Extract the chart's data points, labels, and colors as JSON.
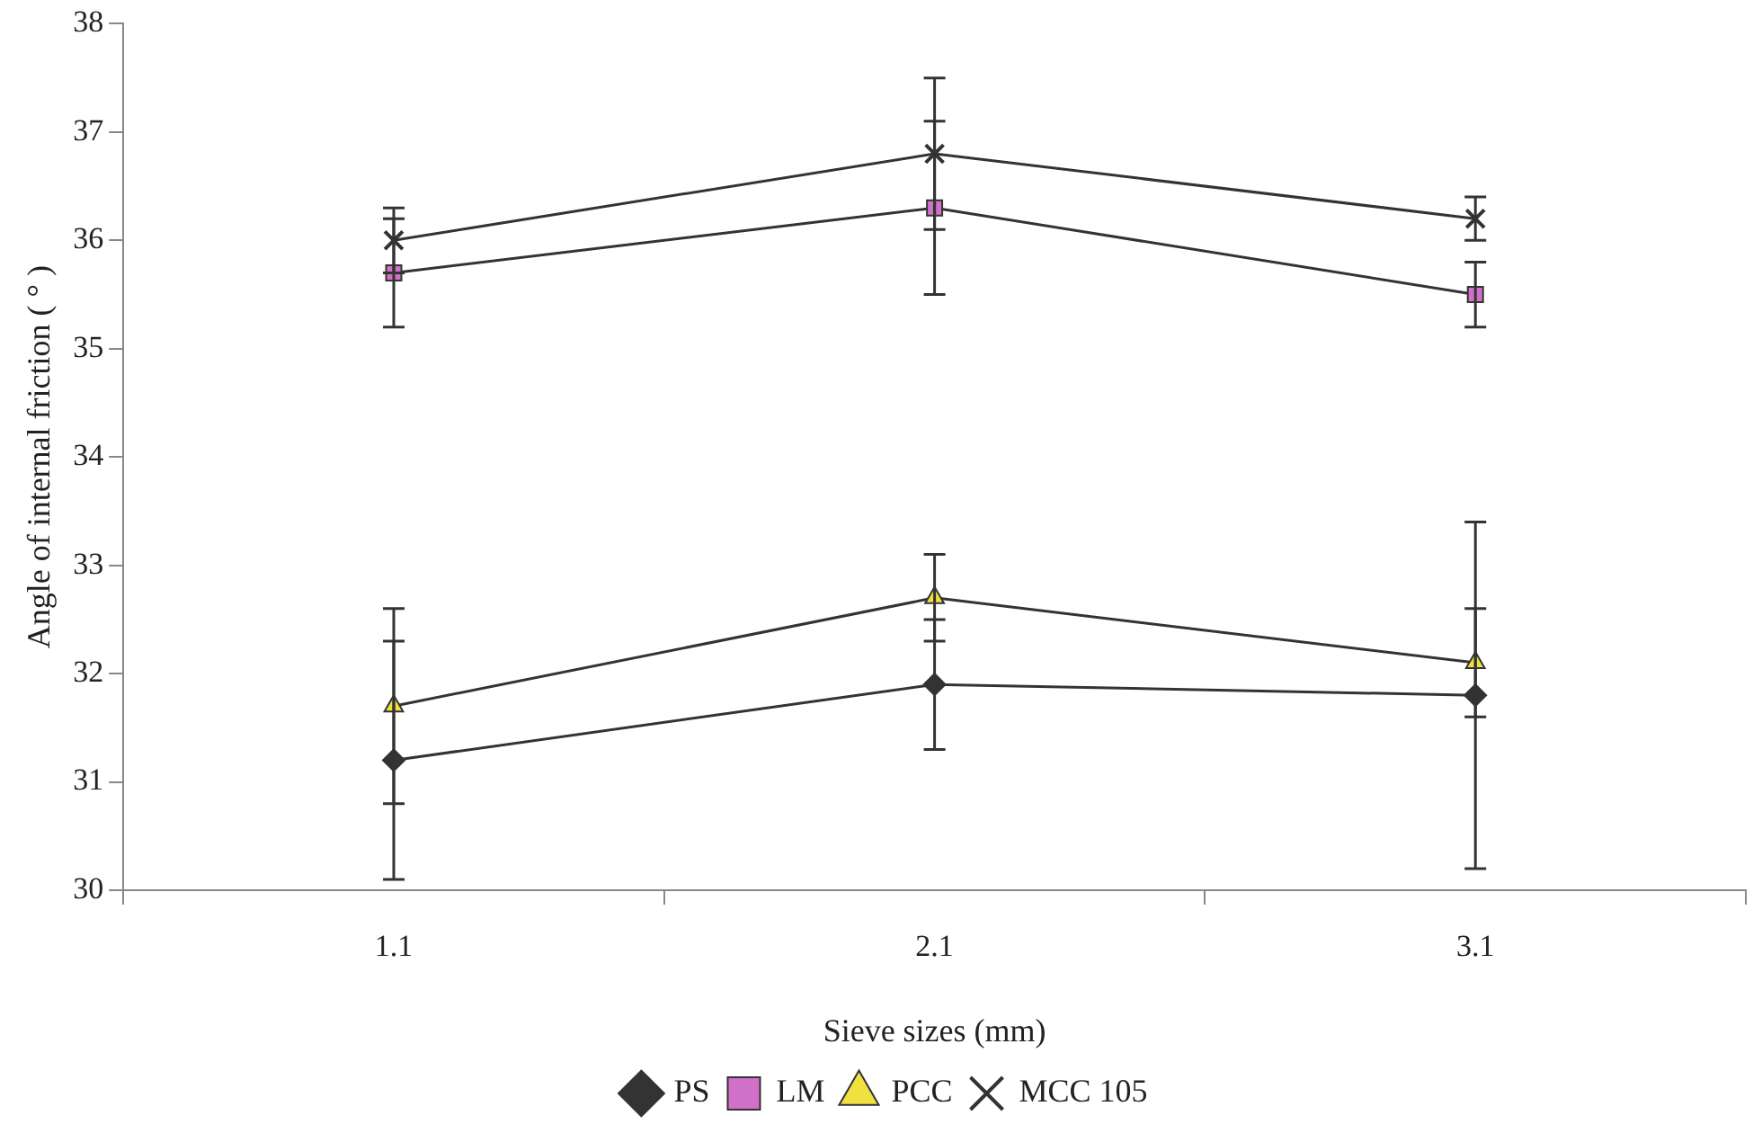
{
  "chart_data": {
    "type": "line",
    "xlabel": "Sieve sizes (mm)",
    "ylabel": "Angle of internal friction ( ° )",
    "categories": [
      "1.1",
      "2.1",
      "3.1"
    ],
    "ylim": [
      30,
      38
    ],
    "yticks": [
      30,
      31,
      32,
      33,
      34,
      35,
      36,
      37,
      38
    ],
    "grid": false,
    "legend": "bottom",
    "line_style": "solid",
    "series": [
      {
        "name": "PS",
        "color": "#333333",
        "marker": "diamond",
        "values": [
          31.2,
          31.9,
          31.8
        ],
        "errors": [
          1.1,
          0.6,
          1.6
        ]
      },
      {
        "name": "LM",
        "color": "#d070c8",
        "marker": "square",
        "values": [
          35.7,
          36.3,
          35.5
        ],
        "errors": [
          0.5,
          0.8,
          0.3
        ]
      },
      {
        "name": "PCC",
        "color": "#f0e040",
        "marker": "triangle",
        "values": [
          31.7,
          32.7,
          32.1
        ],
        "errors": [
          0.9,
          0.4,
          0.5
        ]
      },
      {
        "name": "MCC 105",
        "color": "#333333",
        "marker": "cross",
        "values": [
          36.0,
          36.8,
          36.2
        ],
        "errors": [
          0.3,
          0.7,
          0.2
        ]
      }
    ]
  }
}
